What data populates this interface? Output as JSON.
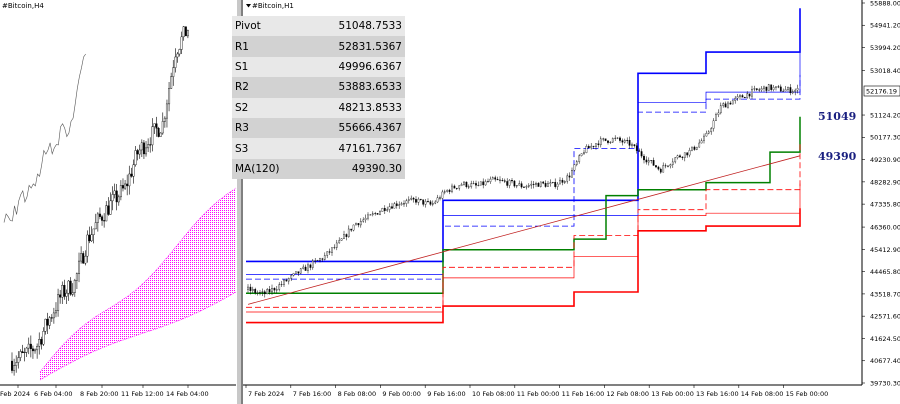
{
  "left_panel": {
    "symbol": "#Bitcoin,H4",
    "x_ticks": [
      "Feb 2024",
      "6 Feb 04:00",
      "8 Feb 20:00",
      "11 Feb 12:00",
      "14 Feb 04:00"
    ]
  },
  "right_panel": {
    "symbol": "#Bitcoin,H1",
    "x_ticks": [
      "7 Feb 2024",
      "7 Feb 16:00",
      "8 Feb 08:00",
      "9 Feb 00:00",
      "9 Feb 16:00",
      "10 Feb 08:00",
      "11 Feb 00:00",
      "11 Feb 16:00",
      "12 Feb 08:00",
      "13 Feb 00:00",
      "13 Feb 16:00",
      "14 Feb 08:00",
      "15 Feb 00:00"
    ],
    "y_ticks": [
      "55888.00",
      "54941.20",
      "53994.20",
      "53018.40",
      "52176.19",
      "51124.20",
      "50177.30",
      "49230.90",
      "48282.90",
      "47335.80",
      "46360.00",
      "45412.90",
      "44465.80",
      "43518.70",
      "42571.60",
      "41624.50",
      "40677.40",
      "39730.30"
    ],
    "current_price": "52176.19",
    "level_labels": {
      "pivot": "51049",
      "ma": "49390"
    }
  },
  "pivot_table": [
    {
      "label": "Pivot",
      "value": "51048.7533"
    },
    {
      "label": "R1",
      "value": "52831.5367"
    },
    {
      "label": "S1",
      "value": "49996.6367"
    },
    {
      "label": "R2",
      "value": "53883.6533"
    },
    {
      "label": "S2",
      "value": "48213.8533"
    },
    {
      "label": "R3",
      "value": "55666.4367"
    },
    {
      "label": "S3",
      "value": "47161.7367"
    },
    {
      "label": "MA(120)",
      "value": "49390.30"
    }
  ],
  "colors": {
    "resistance": "#0000ff",
    "pivot": "#008000",
    "support": "#ff0000",
    "ma": "#c02020",
    "cloud": "#ff00ff"
  },
  "chart_data": [
    {
      "type": "candlestick",
      "name": "#Bitcoin,H4",
      "x": [
        "Feb 2024",
        "6 Feb 04:00",
        "8 Feb 20:00",
        "11 Feb 12:00",
        "14 Feb 04:00"
      ],
      "price_path": [
        42300,
        42500,
        42900,
        43900,
        44800,
        45200,
        46800,
        47600,
        48200,
        48700,
        50000,
        50600,
        51100,
        53800,
        54600
      ],
      "ylim": [
        41600,
        55000
      ]
    },
    {
      "type": "candlestick",
      "name": "#Bitcoin,H1",
      "x": [
        "7 Feb 2024",
        "7 Feb 16:00",
        "8 Feb 08:00",
        "9 Feb 00:00",
        "9 Feb 16:00",
        "10 Feb 08:00",
        "11 Feb 00:00",
        "11 Feb 16:00",
        "12 Feb 08:00",
        "13 Feb 00:00",
        "13 Feb 16:00",
        "14 Feb 08:00",
        "15 Feb 00:00"
      ],
      "ylim": [
        39730.3,
        55888.0
      ],
      "price_path": [
        [
          0,
          43700
        ],
        [
          1,
          43500
        ],
        [
          2,
          43850
        ],
        [
          3,
          44300
        ],
        [
          4,
          44700
        ],
        [
          5,
          45100
        ],
        [
          6,
          45700
        ],
        [
          7,
          46500
        ],
        [
          8,
          46800
        ],
        [
          9,
          47200
        ],
        [
          10,
          47400
        ],
        [
          11,
          47500
        ],
        [
          12,
          47300
        ],
        [
          13,
          47900
        ],
        [
          14,
          48200
        ],
        [
          15,
          48100
        ],
        [
          16,
          48350
        ],
        [
          17,
          48250
        ],
        [
          18,
          48100
        ],
        [
          19,
          48200
        ],
        [
          20,
          48150
        ],
        [
          21,
          48500
        ],
        [
          22,
          49600
        ],
        [
          23,
          50000
        ],
        [
          24,
          50100
        ],
        [
          25,
          49900
        ],
        [
          26,
          49300
        ],
        [
          27,
          48800
        ],
        [
          28,
          49300
        ],
        [
          29,
          49600
        ],
        [
          30,
          50200
        ],
        [
          31,
          51500
        ],
        [
          32,
          51800
        ],
        [
          33,
          52100
        ],
        [
          34,
          52300
        ],
        [
          35,
          52200
        ],
        [
          36,
          52176
        ]
      ],
      "levels": {
        "R3": [
          44900,
          44900,
          44900,
          47500,
          47500,
          47500,
          47500,
          52900,
          53800,
          53800,
          55666
        ],
        "R2": [
          44350,
          44350,
          44350,
          46850,
          46850,
          46850,
          46850,
          51650,
          52100,
          52100,
          53884
        ],
        "R1": [
          44150,
          44150,
          44150,
          46400,
          46400,
          49700,
          49700,
          51250,
          51800,
          51800,
          52832
        ],
        "Pivot": [
          43550,
          43550,
          43550,
          45400,
          45400,
          45850,
          47700,
          47950,
          48250,
          49550,
          51049
        ],
        "S1": [
          42950,
          42950,
          42950,
          44650,
          44650,
          46000,
          46000,
          47100,
          47950,
          47950,
          49997
        ],
        "S2": [
          42750,
          42750,
          42750,
          44200,
          44200,
          45100,
          45100,
          46850,
          46950,
          46950,
          48214
        ],
        "S3": [
          42300,
          42300,
          42300,
          43000,
          43000,
          43600,
          43600,
          46200,
          46400,
          46400,
          47162
        ]
      },
      "ma120": {
        "start": 43500,
        "end": 49390.3
      }
    }
  ]
}
